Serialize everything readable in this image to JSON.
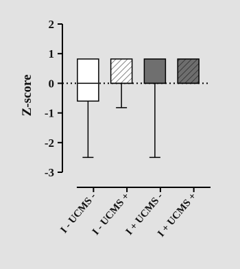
{
  "chart_data": {
    "type": "box",
    "title": "",
    "xlabel": "",
    "ylabel": "Z-score",
    "ylim": [
      -3,
      2
    ],
    "yticks": [
      "2",
      "1",
      "0",
      "-1",
      "-2",
      "-3"
    ],
    "yticks_values": [
      2,
      1,
      0,
      -1,
      -2,
      -3
    ],
    "reference_line": {
      "y": 0,
      "style": "dotted"
    },
    "categories": [
      "I - UCMS -",
      "I - UCMS +",
      "I + UCMS -",
      "I + UCMS +"
    ],
    "series": [
      {
        "category": "I - UCMS -",
        "q1": -0.6,
        "median": 0,
        "q3": 0.82,
        "whisker_low": -2.5,
        "whisker_high": 0.82,
        "fill": "white"
      },
      {
        "category": "I - UCMS +",
        "q1": 0,
        "median": 0,
        "q3": 0.82,
        "whisker_low": -0.82,
        "whisker_high": 0.82,
        "fill": "hatched-light"
      },
      {
        "category": "I + UCMS -",
        "q1": 0,
        "median": 0,
        "q3": 0.82,
        "whisker_low": -2.5,
        "whisker_high": 0.82,
        "fill": "solid-gray"
      },
      {
        "category": "I + UCMS +",
        "q1": 0,
        "median": 0,
        "q3": 0.82,
        "whisker_low": 0,
        "whisker_high": 0.82,
        "fill": "hatched-dark"
      }
    ],
    "colors": {
      "background": "#e2e2e2",
      "white": "#ffffff",
      "light": "#ffffff",
      "solid": "#6f6f6f",
      "dark": "#707070",
      "stroke": "#000000"
    },
    "grid": false
  }
}
